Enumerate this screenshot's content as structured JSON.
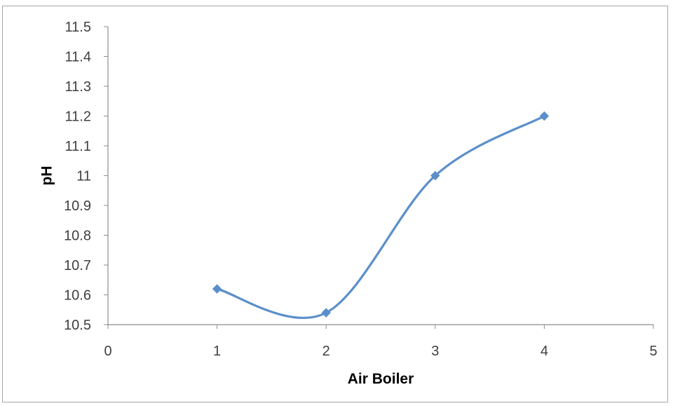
{
  "chart_data": {
    "type": "line",
    "title": "",
    "xlabel": "Air Boiler",
    "ylabel": "pH",
    "xlim": [
      0,
      5
    ],
    "ylim": [
      10.5,
      11.5
    ],
    "x_ticks": [
      0,
      1,
      2,
      3,
      4,
      5
    ],
    "y_ticks": [
      10.5,
      10.6,
      10.7,
      10.8,
      10.9,
      11,
      11.1,
      11.2,
      11.3,
      11.4,
      11.5
    ],
    "x_tick_labels": [
      "0",
      "1",
      "2",
      "3",
      "4",
      "5"
    ],
    "y_tick_labels": [
      "10.5",
      "10.6",
      "10.7",
      "10.8",
      "10.9",
      "11",
      "11.1",
      "11.2",
      "11.3",
      "11.4",
      "11.5"
    ],
    "grid": false,
    "smooth": true,
    "marker": "diamond",
    "legend": "none",
    "series": [
      {
        "x": [
          1,
          2,
          3,
          4
        ],
        "y": [
          10.62,
          10.54,
          11.0,
          11.2
        ],
        "color": "#5b8fc9"
      }
    ]
  },
  "colors": {
    "series": "#5b8fc9",
    "axis": "#8c8c8c",
    "frame": "#a6a6a6",
    "tick_text": "#404040"
  }
}
